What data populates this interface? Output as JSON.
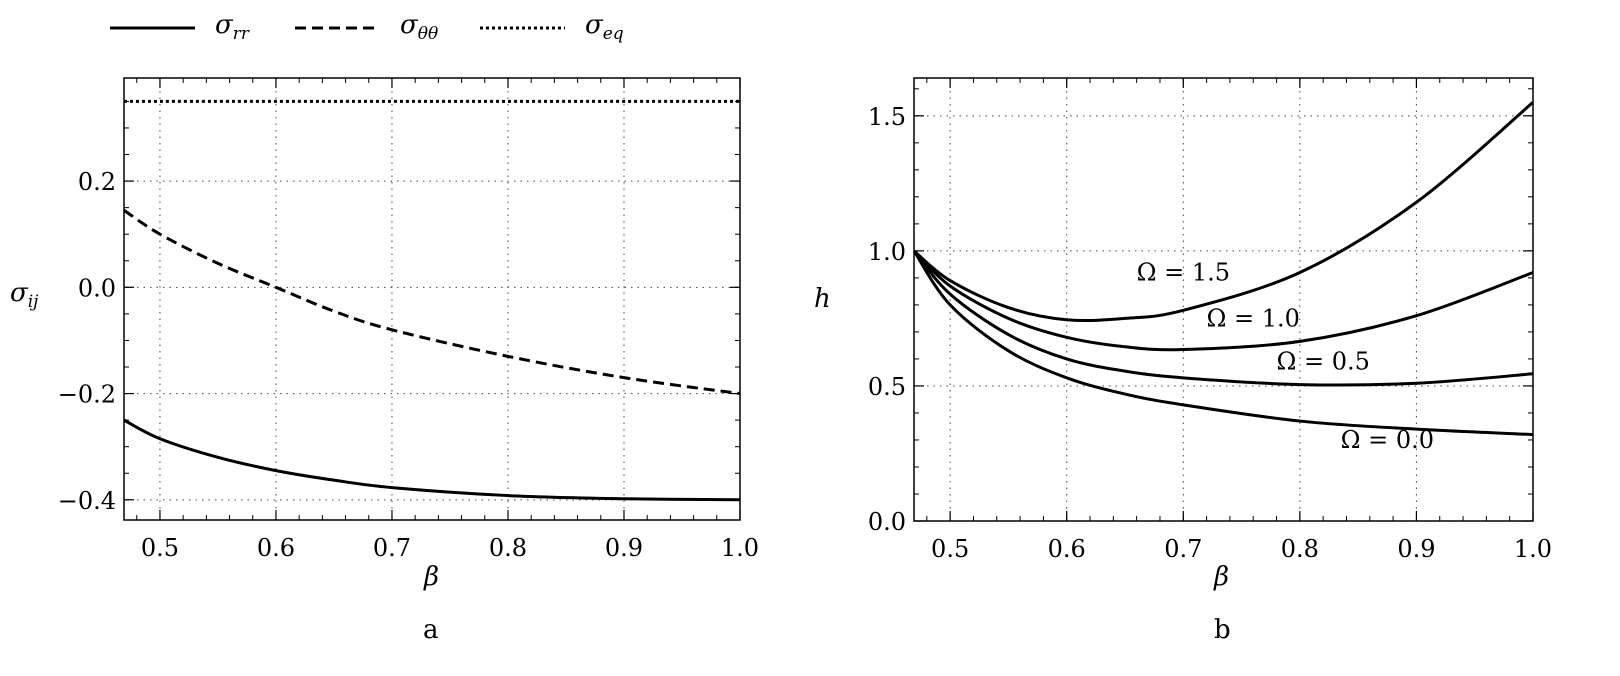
{
  "legend": [
    {
      "symbol": "σ",
      "sub": "rr",
      "style": "solid"
    },
    {
      "symbol": "σ",
      "sub": "θθ",
      "style": "dashed"
    },
    {
      "symbol": "σ",
      "sub": "eq",
      "style": "dotted"
    }
  ],
  "chart_data": [
    {
      "type": "line",
      "caption": "a",
      "xlabel": "β",
      "ylabel": {
        "symbol": "σ",
        "sub": "ij"
      },
      "xlim": [
        0.469,
        1.0
      ],
      "ylim": [
        -0.438,
        0.394
      ],
      "xticks": [
        0.5,
        0.6,
        0.7,
        0.8,
        0.9,
        1.0
      ],
      "xtick_labels": [
        "0.5",
        "0.6",
        "0.7",
        "0.8",
        "0.9",
        "1.0"
      ],
      "yticks": [
        -0.4,
        -0.2,
        0.0,
        0.2
      ],
      "ytick_labels": [
        "−0.4",
        "−0.2",
        "0.0",
        "0.2"
      ],
      "xminor": 0.02,
      "yminor": 0.05,
      "grid": true,
      "legend_position": "top-outside",
      "series": [
        {
          "name": "σ_rr",
          "style": "solid",
          "x": [
            0.469,
            0.5,
            0.55,
            0.6,
            0.65,
            0.7,
            0.8,
            0.9,
            1.0
          ],
          "y": [
            -0.25,
            -0.285,
            -0.32,
            -0.345,
            -0.363,
            -0.377,
            -0.392,
            -0.398,
            -0.4
          ]
        },
        {
          "name": "σ_θθ",
          "style": "dashed",
          "x": [
            0.469,
            0.5,
            0.55,
            0.6,
            0.65,
            0.7,
            0.8,
            0.9,
            1.0
          ],
          "y": [
            0.145,
            0.1,
            0.045,
            0.0,
            -0.045,
            -0.08,
            -0.13,
            -0.17,
            -0.2
          ]
        },
        {
          "name": "σ_eq",
          "style": "dotted",
          "x": [
            0.469,
            1.0
          ],
          "y": [
            0.35,
            0.35
          ]
        }
      ]
    },
    {
      "type": "line",
      "caption": "b",
      "xlabel": "β",
      "ylabel": {
        "symbol": "h",
        "sub": ""
      },
      "xlim": [
        0.469,
        1.0
      ],
      "ylim": [
        0.0,
        1.64
      ],
      "xticks": [
        0.5,
        0.6,
        0.7,
        0.8,
        0.9,
        1.0
      ],
      "xtick_labels": [
        "0.5",
        "0.6",
        "0.7",
        "0.8",
        "0.9",
        "1.0"
      ],
      "yticks": [
        0.0,
        0.5,
        1.0,
        1.5
      ],
      "ytick_labels": [
        "0.0",
        "0.5",
        "1.0",
        "1.5"
      ],
      "xminor": 0.02,
      "yminor": 0.1,
      "grid": true,
      "series": [
        {
          "name": "Ω = 0.0",
          "style": "solid",
          "label_at": [
            0.875,
            0.27
          ],
          "x": [
            0.469,
            0.5,
            0.55,
            0.6,
            0.65,
            0.7,
            0.8,
            0.9,
            1.0
          ],
          "y": [
            1.0,
            0.8,
            0.63,
            0.53,
            0.47,
            0.43,
            0.37,
            0.34,
            0.32
          ]
        },
        {
          "name": "Ω = 0.5",
          "style": "solid",
          "label_at": [
            0.82,
            0.56
          ],
          "x": [
            0.469,
            0.5,
            0.55,
            0.6,
            0.65,
            0.7,
            0.8,
            0.9,
            1.0
          ],
          "y": [
            1.0,
            0.84,
            0.69,
            0.6,
            0.555,
            0.53,
            0.505,
            0.51,
            0.545
          ]
        },
        {
          "name": "Ω = 1.0",
          "style": "solid",
          "label_at": [
            0.76,
            0.72
          ],
          "x": [
            0.469,
            0.5,
            0.55,
            0.6,
            0.65,
            0.7,
            0.8,
            0.9,
            1.0
          ],
          "y": [
            1.0,
            0.87,
            0.75,
            0.68,
            0.645,
            0.635,
            0.665,
            0.76,
            0.92
          ]
        },
        {
          "name": "Ω = 1.5",
          "style": "solid",
          "label_at": [
            0.7,
            0.89
          ],
          "x": [
            0.469,
            0.5,
            0.55,
            0.6,
            0.65,
            0.7,
            0.8,
            0.9,
            1.0
          ],
          "y": [
            1.0,
            0.89,
            0.79,
            0.745,
            0.75,
            0.78,
            0.92,
            1.18,
            1.55
          ]
        }
      ]
    }
  ]
}
